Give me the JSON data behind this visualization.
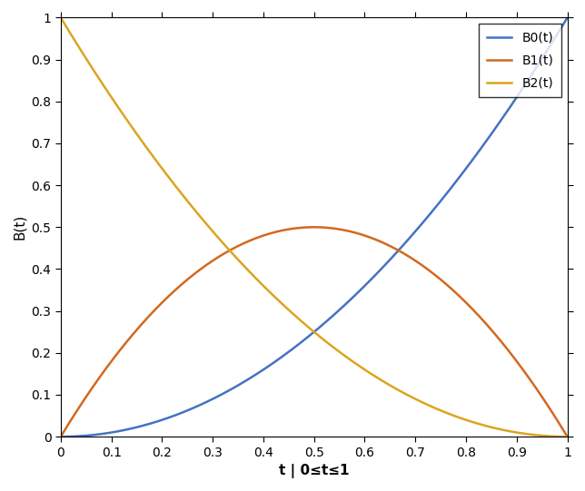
{
  "title": "",
  "xlabel": "t | 0≤t≤1",
  "ylabel": "B(t)",
  "xlim": [
    0,
    1
  ],
  "ylim": [
    0,
    1
  ],
  "xticks": [
    0,
    0.1,
    0.2,
    0.3,
    0.4,
    0.5,
    0.6,
    0.7,
    0.8,
    0.9,
    1.0
  ],
  "yticks": [
    0,
    0.1,
    0.2,
    0.3,
    0.4,
    0.5,
    0.6,
    0.7,
    0.8,
    0.9,
    1.0
  ],
  "xtick_labels": [
    "0",
    "0.1",
    "0.2",
    "0.3",
    "0.4",
    "0.5",
    "0.6",
    "0.7",
    "0.8",
    "0.9",
    "1"
  ],
  "ytick_labels": [
    "0",
    "0.1",
    "0.2",
    "0.3",
    "0.4",
    "0.5",
    "0.6",
    "0.7",
    "0.8",
    "0.9",
    "1"
  ],
  "series": [
    {
      "label": "B0(t)",
      "formula": "t**2",
      "color": "#4472C4"
    },
    {
      "label": "B1(t)",
      "formula": "2*t*(1-t)",
      "color": "#D2691E"
    },
    {
      "label": "B2(t)",
      "formula": "(1-t)**2",
      "color": "#DAA520"
    }
  ],
  "legend_loc": "upper right",
  "linewidth": 1.8,
  "background_color": "#ffffff",
  "tick_label_fontsize": 10,
  "axis_label_fontsize": 11,
  "legend_fontsize": 10,
  "n_points": 500,
  "fig_width": 6.44,
  "fig_height": 5.41,
  "dpi": 100
}
